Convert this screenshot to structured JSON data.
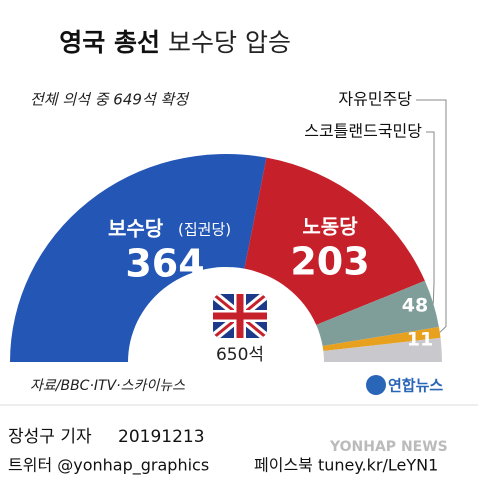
{
  "chart_data": {
    "type": "half-donut",
    "title": "영국 총선",
    "title_detail": "보수당 압승",
    "subtitle": "전체 의석 중 649석 확정",
    "categories": [
      "보수당",
      "노동당",
      "스코틀랜드국민당",
      "자유민주당",
      null
    ],
    "ruling_party_label": "(집권당)",
    "values": [
      364,
      203,
      48,
      11,
      24
    ],
    "colors": [
      "#2456b6",
      "#c6202b",
      "#7f9e99",
      "#e7a11f",
      "#c9c9cd"
    ],
    "total": {
      "value": 650,
      "label": "650석"
    },
    "source": "자료/BBC·ITV·스카이뉴스"
  },
  "logo": "연합뉴스",
  "watermark": "YONHAP NEWS",
  "footer": {
    "reporter": "장성구 기자",
    "date": "20191213",
    "twitter": "트위터 @yonhap_graphics",
    "facebook": "페이스북 tuney.kr/LeYN1"
  }
}
